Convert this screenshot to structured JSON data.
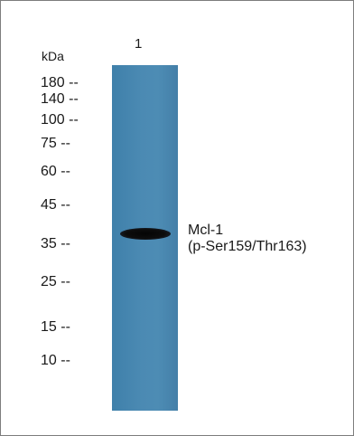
{
  "blot": {
    "unit_label": "kDa",
    "lane_labels": [
      "1"
    ],
    "markers": [
      "180 --",
      "140 --",
      "100 --",
      "75 --",
      "60 --",
      "45 --",
      "35 --",
      "25 --",
      "15 --",
      "10 --"
    ],
    "band_label_line1": "Mcl-1",
    "band_label_line2": "(p-Ser159/Thr163)",
    "colors": {
      "lane": "#4a88b1",
      "band": "#0a0a0a",
      "border": "#7d7d7d"
    }
  }
}
